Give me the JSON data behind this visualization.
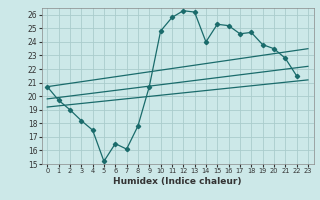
{
  "xlabel": "Humidex (Indice chaleur)",
  "background_color": "#cce8e8",
  "grid_color": "#aacccc",
  "line_color": "#1a6b6b",
  "xlim": [
    -0.5,
    23.5
  ],
  "ylim": [
    15,
    26.5
  ],
  "xticks": [
    0,
    1,
    2,
    3,
    4,
    5,
    6,
    7,
    8,
    9,
    10,
    11,
    12,
    13,
    14,
    15,
    16,
    17,
    18,
    19,
    20,
    21,
    22,
    23
  ],
  "yticks": [
    15,
    16,
    17,
    18,
    19,
    20,
    21,
    22,
    23,
    24,
    25,
    26
  ],
  "main_line_x": [
    0,
    1,
    2,
    3,
    4,
    5,
    6,
    7,
    8,
    9,
    10,
    11,
    12,
    13,
    14,
    15,
    16,
    17,
    18,
    19,
    20,
    21,
    22
  ],
  "main_line_y": [
    20.7,
    19.7,
    19.0,
    18.2,
    17.5,
    15.2,
    16.5,
    16.1,
    17.8,
    20.7,
    24.8,
    25.8,
    26.3,
    26.2,
    24.0,
    25.3,
    25.2,
    24.6,
    24.7,
    23.8,
    23.5,
    22.8,
    21.5
  ],
  "reg_line1_x": [
    0,
    23
  ],
  "reg_line1_y": [
    20.7,
    23.5
  ],
  "reg_line2_x": [
    0,
    23
  ],
  "reg_line2_y": [
    19.8,
    22.2
  ],
  "reg_line3_x": [
    0,
    23
  ],
  "reg_line3_y": [
    19.2,
    21.2
  ]
}
